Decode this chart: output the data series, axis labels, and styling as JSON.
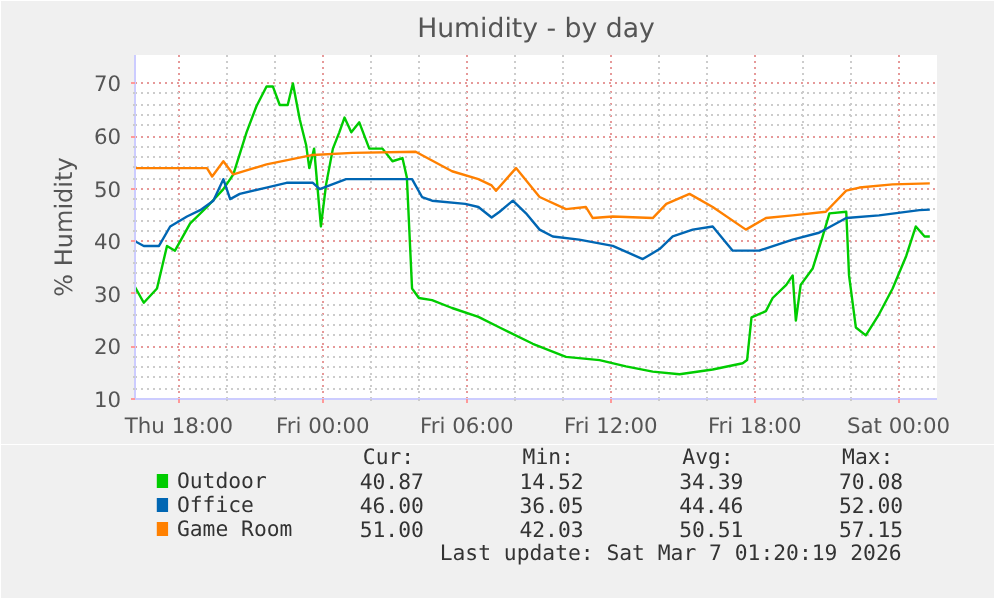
{
  "chart_data": {
    "type": "line",
    "title": "Humidity - by day",
    "ylabel": "% Humidity",
    "xlim": [
      "2026-03-05T16:10",
      "2026-03-07T01:36"
    ],
    "ylim": [
      10,
      75.4
    ],
    "xticks": [
      {
        "value": "2026-03-05T18:00",
        "label": "Thu 18:00"
      },
      {
        "value": "2026-03-06T00:00",
        "label": "Fri 00:00"
      },
      {
        "value": "2026-03-06T06:00",
        "label": "Fri 06:00"
      },
      {
        "value": "2026-03-06T12:00",
        "label": "Fri 12:00"
      },
      {
        "value": "2026-03-06T18:00",
        "label": "Fri 18:00"
      },
      {
        "value": "2026-03-07T00:00",
        "label": "Sat 00:00"
      }
    ],
    "yticks": [
      10,
      20,
      30,
      40,
      50,
      60,
      70
    ],
    "grid": true,
    "legend": "bottom",
    "series": [
      {
        "name": "Outdoor",
        "color": "#00cc00",
        "x": [
          "2026-03-05T16:10",
          "2026-03-05T16:32",
          "2026-03-05T17:05",
          "2026-03-05T17:30",
          "2026-03-05T17:50",
          "2026-03-05T18:28",
          "2026-03-05T19:10",
          "2026-03-05T19:51",
          "2026-03-05T20:16",
          "2026-03-05T20:49",
          "2026-03-05T21:14",
          "2026-03-05T21:39",
          "2026-03-05T21:55",
          "2026-03-05T22:12",
          "2026-03-05T22:32",
          "2026-03-05T22:45",
          "2026-03-05T23:02",
          "2026-03-05T23:18",
          "2026-03-05T23:26",
          "2026-03-05T23:38",
          "2026-03-05T23:55",
          "2026-03-06T00:08",
          "2026-03-06T00:25",
          "2026-03-06T00:41",
          "2026-03-06T00:54",
          "2026-03-06T01:11",
          "2026-03-06T01:31",
          "2026-03-06T01:56",
          "2026-03-06T02:29",
          "2026-03-06T02:54",
          "2026-03-06T03:19",
          "2026-03-06T03:30",
          "2026-03-06T03:43",
          "2026-03-06T04:00",
          "2026-03-06T04:33",
          "2026-03-06T05:23",
          "2026-03-06T06:29",
          "2026-03-06T07:22",
          "2026-03-06T08:45",
          "2026-03-06T10:08",
          "2026-03-06T11:32",
          "2026-03-06T12:38",
          "2026-03-06T13:45",
          "2026-03-06T14:52",
          "2026-03-06T16:15",
          "2026-03-06T17:30",
          "2026-03-06T17:41",
          "2026-03-06T17:52",
          "2026-03-06T18:28",
          "2026-03-06T18:45",
          "2026-03-06T19:19",
          "2026-03-06T19:35",
          "2026-03-06T19:43",
          "2026-03-06T19:55",
          "2026-03-06T20:25",
          "2026-03-06T20:50",
          "2026-03-06T21:07",
          "2026-03-06T21:49",
          "2026-03-06T21:56",
          "2026-03-06T22:13",
          "2026-03-06T22:38",
          "2026-03-06T23:11",
          "2026-03-06T23:45",
          "2026-03-07T00:19",
          "2026-03-07T00:43",
          "2026-03-07T01:05",
          "2026-03-07T01:18"
        ],
        "values": [
          31.3,
          28.3,
          31.0,
          39.1,
          38.2,
          43.4,
          46.5,
          49.9,
          52.7,
          60.7,
          65.7,
          69.4,
          69.4,
          65.9,
          65.9,
          70.0,
          63.2,
          58.3,
          53.9,
          57.6,
          42.8,
          50.8,
          57.6,
          60.7,
          63.5,
          60.7,
          62.6,
          57.6,
          57.6,
          55.2,
          55.8,
          52.1,
          31.0,
          29.2,
          28.8,
          27.3,
          25.6,
          23.6,
          20.5,
          18.0,
          17.4,
          16.2,
          15.2,
          14.7,
          15.6,
          16.8,
          17.4,
          25.5,
          26.7,
          29.2,
          31.7,
          33.5,
          24.9,
          31.7,
          34.8,
          40.9,
          45.3,
          45.6,
          33.5,
          23.6,
          22.1,
          26.1,
          31.0,
          37.2,
          42.8,
          40.9,
          40.9
        ]
      },
      {
        "name": "Office",
        "color": "#0066b3",
        "x": [
          "2026-03-05T16:10",
          "2026-03-05T16:32",
          "2026-03-05T17:10",
          "2026-03-05T17:38",
          "2026-03-05T18:20",
          "2026-03-05T18:53",
          "2026-03-05T19:26",
          "2026-03-05T19:51",
          "2026-03-05T20:08",
          "2026-03-05T20:32",
          "2026-03-05T21:39",
          "2026-03-05T22:29",
          "2026-03-05T23:35",
          "2026-03-05T23:52",
          "2026-03-06T00:58",
          "2026-03-06T03:10",
          "2026-03-06T03:43",
          "2026-03-06T04:08",
          "2026-03-06T04:33",
          "2026-03-06T05:56",
          "2026-03-06T06:29",
          "2026-03-06T07:02",
          "2026-03-06T07:22",
          "2026-03-06T07:55",
          "2026-03-06T08:28",
          "2026-03-06T09:02",
          "2026-03-06T09:35",
          "2026-03-06T10:41",
          "2026-03-06T12:05",
          "2026-03-06T13:20",
          "2026-03-06T14:02",
          "2026-03-06T14:35",
          "2026-03-06T15:25",
          "2026-03-06T16:15",
          "2026-03-06T17:05",
          "2026-03-06T18:11",
          "2026-03-06T19:35",
          "2026-03-06T20:41",
          "2026-03-06T21:49",
          "2026-03-06T23:11",
          "2026-03-07T00:52",
          "2026-03-07T01:18"
        ],
        "values": [
          40.0,
          39.1,
          39.1,
          42.8,
          44.7,
          45.9,
          47.7,
          51.8,
          48.0,
          49.0,
          50.2,
          51.1,
          51.1,
          49.9,
          51.8,
          51.8,
          51.8,
          48.4,
          47.7,
          47.1,
          46.5,
          44.5,
          45.6,
          47.7,
          45.3,
          42.2,
          40.9,
          40.3,
          39.1,
          36.6,
          38.5,
          40.9,
          42.2,
          42.8,
          38.2,
          38.2,
          40.3,
          41.6,
          44.4,
          44.9,
          45.9,
          46.0
        ]
      },
      {
        "name": "Game Room",
        "color": "#ff8000",
        "x": [
          "2026-03-05T16:10",
          "2026-03-05T19:10",
          "2026-03-05T19:23",
          "2026-03-05T19:51",
          "2026-03-05T20:16",
          "2026-03-05T21:39",
          "2026-03-05T23:35",
          "2026-03-06T01:14",
          "2026-03-06T03:52",
          "2026-03-06T05:23",
          "2026-03-06T06:29",
          "2026-03-06T07:02",
          "2026-03-06T07:13",
          "2026-03-06T08:03",
          "2026-03-06T09:02",
          "2026-03-06T10:08",
          "2026-03-06T10:58",
          "2026-03-06T11:15",
          "2026-03-06T12:05",
          "2026-03-06T13:45",
          "2026-03-06T14:19",
          "2026-03-06T15:17",
          "2026-03-06T16:15",
          "2026-03-06T17:38",
          "2026-03-06T18:28",
          "2026-03-06T19:35",
          "2026-03-06T20:58",
          "2026-03-06T21:49",
          "2026-03-06T22:22",
          "2026-03-06T23:45",
          "2026-03-07T01:18"
        ],
        "values": [
          53.9,
          53.9,
          52.3,
          55.2,
          52.7,
          54.6,
          56.4,
          56.8,
          57.0,
          53.3,
          51.8,
          50.6,
          49.6,
          53.9,
          48.4,
          46.1,
          46.5,
          44.4,
          44.7,
          44.4,
          47.1,
          49.0,
          46.5,
          42.2,
          44.4,
          44.9,
          45.6,
          49.6,
          50.2,
          50.8,
          51.0
        ]
      }
    ],
    "annotations": [
      "Cur:",
      "Min:",
      "Avg:",
      "Max:",
      "40.87",
      "14.52",
      "34.39",
      "70.08",
      "46.00",
      "36.05",
      "44.46",
      "52.00",
      "51.00",
      "42.03",
      "50.51",
      "57.15",
      "Last update: Sat Mar  7 01:20:19 2026"
    ]
  }
}
